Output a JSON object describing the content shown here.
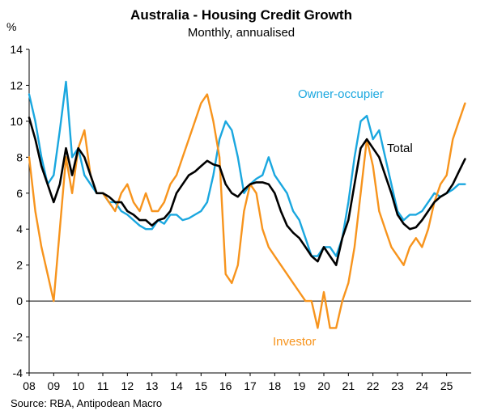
{
  "chart_data": {
    "type": "line",
    "title": "Australia - Housing Credit Growth",
    "subtitle": "Monthly, annualised",
    "ylabel": "%",
    "source": "Source: RBA, Antipodean Macro",
    "ylim": [
      -4,
      14
    ],
    "yticks": [
      "-4",
      "-2",
      "0",
      "2",
      "4",
      "6",
      "8",
      "10",
      "12",
      "14"
    ],
    "xlim": [
      2008,
      2026
    ],
    "xticks": [
      "08",
      "09",
      "10",
      "11",
      "12",
      "13",
      "14",
      "15",
      "16",
      "17",
      "18",
      "19",
      "20",
      "21",
      "22",
      "23",
      "24",
      "25"
    ],
    "grid": false,
    "series": [
      {
        "name": "Owner-occupier",
        "color": "#1AA7DF",
        "x": [
          2008.0,
          2008.25,
          2008.5,
          2008.75,
          2009.0,
          2009.25,
          2009.5,
          2009.75,
          2010.0,
          2010.25,
          2010.5,
          2010.75,
          2011.0,
          2011.25,
          2011.5,
          2011.75,
          2012.0,
          2012.25,
          2012.5,
          2012.75,
          2013.0,
          2013.25,
          2013.5,
          2013.75,
          2014.0,
          2014.25,
          2014.5,
          2014.75,
          2015.0,
          2015.25,
          2015.5,
          2015.75,
          2016.0,
          2016.25,
          2016.5,
          2016.75,
          2017.0,
          2017.25,
          2017.5,
          2017.75,
          2018.0,
          2018.25,
          2018.5,
          2018.75,
          2019.0,
          2019.25,
          2019.5,
          2019.75,
          2020.0,
          2020.25,
          2020.5,
          2020.75,
          2021.0,
          2021.25,
          2021.5,
          2021.75,
          2022.0,
          2022.25,
          2022.5,
          2022.75,
          2023.0,
          2023.25,
          2023.5,
          2023.75,
          2024.0,
          2024.25,
          2024.5,
          2024.75,
          2025.0,
          2025.25,
          2025.5,
          2025.75
        ],
        "values": [
          11.5,
          10.0,
          8.0,
          6.5,
          7.0,
          9.5,
          12.2,
          8.0,
          8.5,
          7.0,
          6.5,
          6.0,
          6.0,
          5.5,
          5.5,
          5.0,
          4.8,
          4.5,
          4.2,
          4.0,
          4.0,
          4.5,
          4.3,
          4.8,
          4.8,
          4.5,
          4.6,
          4.8,
          5.0,
          5.5,
          7.0,
          9.0,
          10.0,
          9.5,
          8.0,
          6.0,
          6.5,
          6.8,
          7.0,
          8.0,
          7.0,
          6.5,
          6.0,
          5.0,
          4.5,
          3.5,
          2.5,
          2.5,
          3.0,
          3.0,
          2.5,
          3.5,
          5.5,
          8.0,
          10.0,
          10.3,
          9.0,
          9.5,
          8.0,
          6.5,
          5.0,
          4.5,
          4.8,
          4.8,
          5.0,
          5.5,
          6.0,
          5.8,
          6.0,
          6.2,
          6.5,
          6.5
        ]
      },
      {
        "name": "Investor",
        "color": "#F7941D",
        "x": [
          2008.0,
          2008.25,
          2008.5,
          2008.75,
          2009.0,
          2009.25,
          2009.5,
          2009.75,
          2010.0,
          2010.25,
          2010.5,
          2010.75,
          2011.0,
          2011.25,
          2011.5,
          2011.75,
          2012.0,
          2012.25,
          2012.5,
          2012.75,
          2013.0,
          2013.25,
          2013.5,
          2013.75,
          2014.0,
          2014.25,
          2014.5,
          2014.75,
          2015.0,
          2015.25,
          2015.5,
          2015.75,
          2016.0,
          2016.25,
          2016.5,
          2016.75,
          2017.0,
          2017.25,
          2017.5,
          2017.75,
          2018.0,
          2018.25,
          2018.5,
          2018.75,
          2019.0,
          2019.25,
          2019.5,
          2019.75,
          2020.0,
          2020.25,
          2020.5,
          2020.75,
          2021.0,
          2021.25,
          2021.5,
          2021.75,
          2022.0,
          2022.25,
          2022.5,
          2022.75,
          2023.0,
          2023.25,
          2023.5,
          2023.75,
          2024.0,
          2024.25,
          2024.5,
          2024.75,
          2025.0,
          2025.25,
          2025.5,
          2025.75
        ],
        "values": [
          8.0,
          5.0,
          3.0,
          1.5,
          0.0,
          4.0,
          8.0,
          6.0,
          8.5,
          9.5,
          7.0,
          6.0,
          6.0,
          5.5,
          5.0,
          6.0,
          6.5,
          5.5,
          5.0,
          6.0,
          5.0,
          5.0,
          5.5,
          6.5,
          7.0,
          8.0,
          9.0,
          10.0,
          11.0,
          11.5,
          10.0,
          8.0,
          1.5,
          1.0,
          2.0,
          5.0,
          6.5,
          6.0,
          4.0,
          3.0,
          2.5,
          2.0,
          1.5,
          1.0,
          0.5,
          0.0,
          0.0,
          -1.5,
          0.5,
          -1.5,
          -1.5,
          0.0,
          1.0,
          3.0,
          6.0,
          9.0,
          7.5,
          5.0,
          4.0,
          3.0,
          2.5,
          2.0,
          3.0,
          3.5,
          3.0,
          4.0,
          5.5,
          6.5,
          7.0,
          9.0,
          10.0,
          11.0
        ]
      },
      {
        "name": "Total",
        "color": "#000000",
        "x": [
          2008.0,
          2008.25,
          2008.5,
          2008.75,
          2009.0,
          2009.25,
          2009.5,
          2009.75,
          2010.0,
          2010.25,
          2010.5,
          2010.75,
          2011.0,
          2011.25,
          2011.5,
          2011.75,
          2012.0,
          2012.25,
          2012.5,
          2012.75,
          2013.0,
          2013.25,
          2013.5,
          2013.75,
          2014.0,
          2014.25,
          2014.5,
          2014.75,
          2015.0,
          2015.25,
          2015.5,
          2015.75,
          2016.0,
          2016.25,
          2016.5,
          2016.75,
          2017.0,
          2017.25,
          2017.5,
          2017.75,
          2018.0,
          2018.25,
          2018.5,
          2018.75,
          2019.0,
          2019.25,
          2019.5,
          2019.75,
          2020.0,
          2020.25,
          2020.5,
          2020.75,
          2021.0,
          2021.25,
          2021.5,
          2021.75,
          2022.0,
          2022.25,
          2022.5,
          2022.75,
          2023.0,
          2023.25,
          2023.5,
          2023.75,
          2024.0,
          2024.25,
          2024.5,
          2024.75,
          2025.0,
          2025.25,
          2025.5,
          2025.75
        ],
        "values": [
          10.2,
          9.0,
          7.5,
          6.5,
          5.5,
          6.5,
          8.5,
          7.0,
          8.5,
          8.0,
          7.0,
          6.0,
          6.0,
          5.8,
          5.5,
          5.5,
          5.0,
          4.8,
          4.5,
          4.5,
          4.2,
          4.5,
          4.6,
          5.0,
          6.0,
          6.5,
          7.0,
          7.2,
          7.5,
          7.8,
          7.6,
          7.5,
          6.5,
          6.0,
          5.8,
          6.2,
          6.5,
          6.6,
          6.6,
          6.5,
          6.0,
          5.0,
          4.2,
          3.8,
          3.5,
          3.0,
          2.5,
          2.2,
          3.0,
          2.5,
          2.0,
          3.5,
          4.5,
          6.5,
          8.5,
          9.0,
          8.5,
          8.0,
          7.0,
          6.0,
          4.8,
          4.3,
          4.0,
          4.1,
          4.5,
          5.0,
          5.5,
          5.8,
          6.0,
          6.5,
          7.2,
          7.9
        ]
      }
    ],
    "annotations": [
      {
        "text": "Owner-occupier",
        "color": "#1AA7DF"
      },
      {
        "text": "Total",
        "color": "#000000"
      },
      {
        "text": "Investor",
        "color": "#F7941D"
      }
    ]
  }
}
